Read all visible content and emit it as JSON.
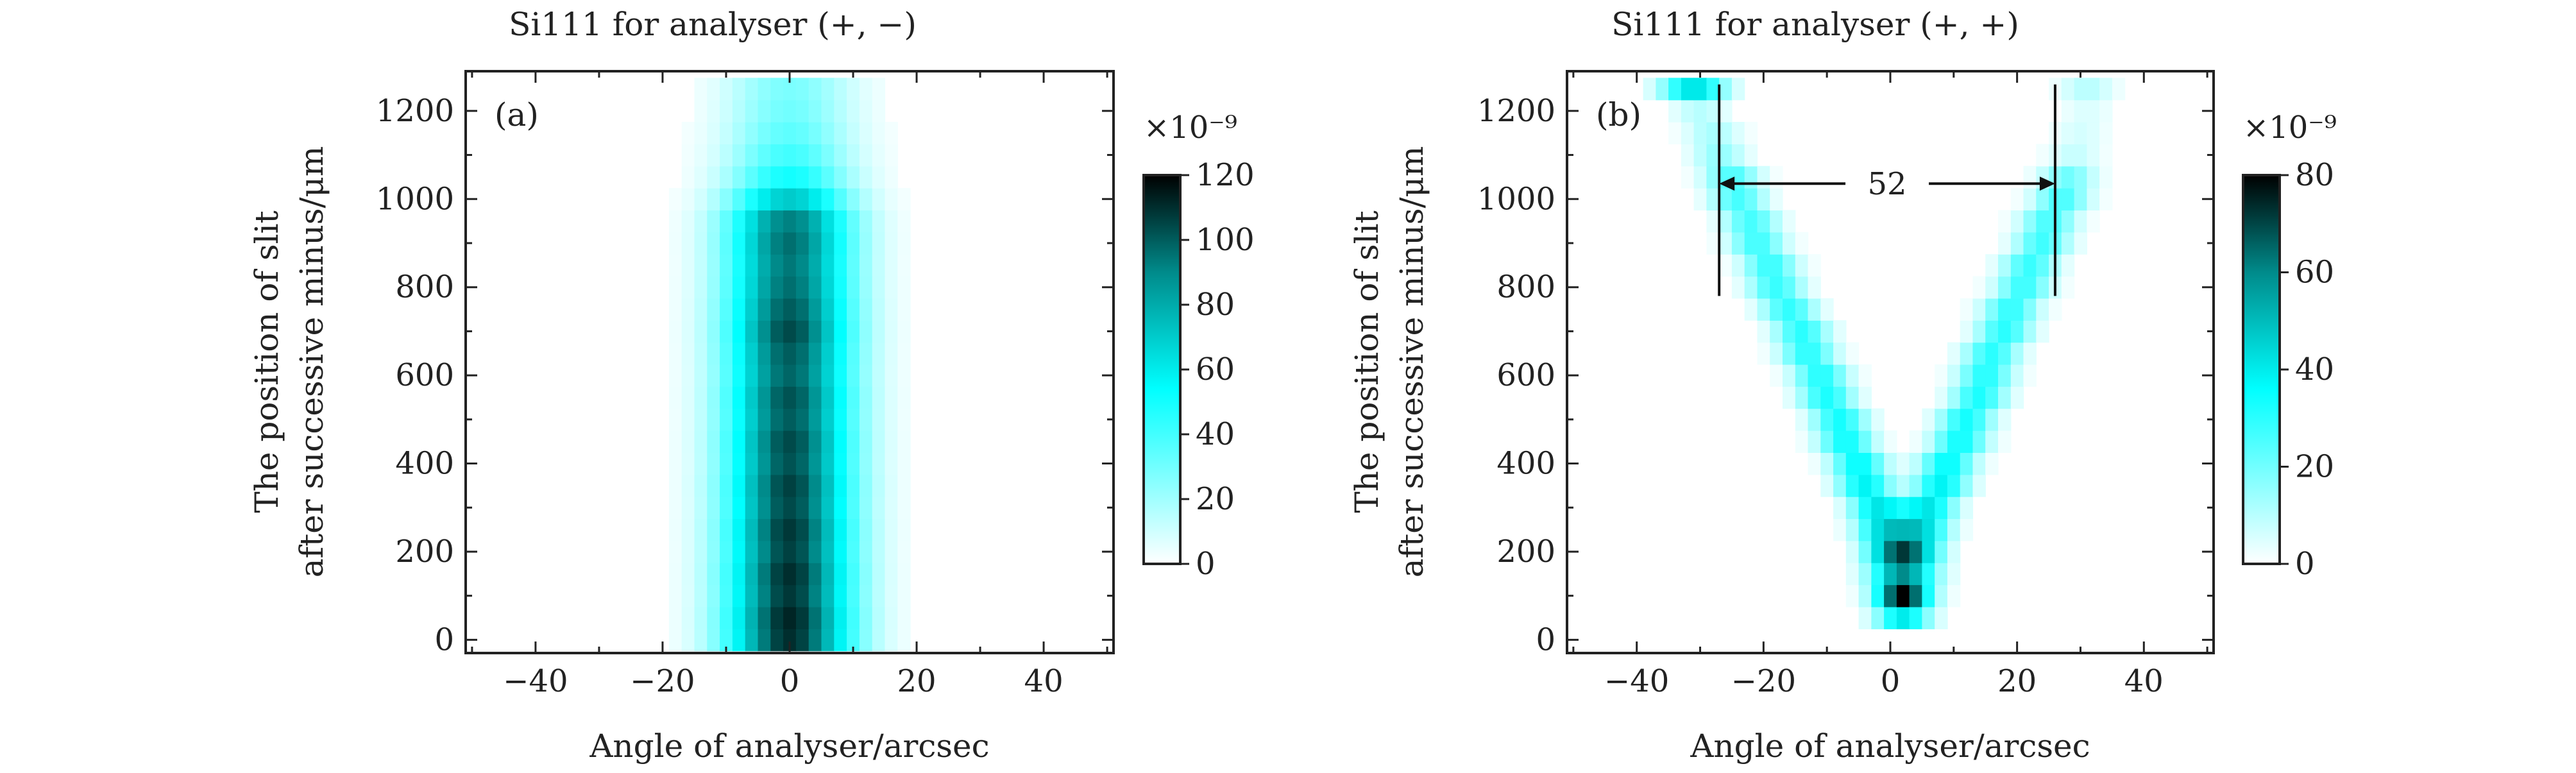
{
  "chart_data": [
    {
      "type": "heatmap",
      "panel_label": "(a)",
      "title": "Si111 for analyser (+, −)",
      "xlabel": "Angle of analyser/arcsec",
      "ylabel_line1": "The position of slit",
      "ylabel_line2": "after successive minus/μm",
      "xlim": [
        -51,
        51
      ],
      "ylim": [
        -30,
        1290
      ],
      "x_ticks": [
        -40,
        -20,
        0,
        20,
        40
      ],
      "x_tick_labels": [
        "−40",
        "−20",
        "0",
        "20",
        "40"
      ],
      "y_ticks": [
        0,
        200,
        400,
        600,
        800,
        1000,
        1200
      ],
      "y_tick_labels": [
        "0",
        "200",
        "400",
        "600",
        "800",
        "1000",
        "1200"
      ],
      "colorbar": {
        "range": [
          0,
          120
        ],
        "exponent_label": "×10⁻⁹",
        "ticks": [
          0,
          20,
          40,
          60,
          80,
          100,
          120
        ],
        "tick_labels": [
          "0",
          "20",
          "40",
          "60",
          "80",
          "100",
          "120"
        ],
        "colors": [
          "#ffffff",
          "#00ffff",
          "#008b8b",
          "#000000"
        ]
      },
      "rows": [
        {
          "y": 0,
          "center": 0,
          "width": 7,
          "peak": 110
        },
        {
          "y": 50,
          "center": 0,
          "width": 7,
          "peak": 112
        },
        {
          "y": 100,
          "center": 0,
          "width": 7,
          "peak": 108
        },
        {
          "y": 150,
          "center": 0,
          "width": 7,
          "peak": 110
        },
        {
          "y": 200,
          "center": 0,
          "width": 7,
          "peak": 106
        },
        {
          "y": 250,
          "center": 0,
          "width": 7,
          "peak": 108
        },
        {
          "y": 300,
          "center": 0,
          "width": 7,
          "peak": 104
        },
        {
          "y": 350,
          "center": 0,
          "width": 7,
          "peak": 106
        },
        {
          "y": 400,
          "center": 0,
          "width": 7,
          "peak": 102
        },
        {
          "y": 450,
          "center": 0,
          "width": 7,
          "peak": 104
        },
        {
          "y": 500,
          "center": 0,
          "width": 7,
          "peak": 100
        },
        {
          "y": 550,
          "center": 0,
          "width": 7,
          "peak": 102
        },
        {
          "y": 600,
          "center": 0,
          "width": 7,
          "peak": 98
        },
        {
          "y": 650,
          "center": 0,
          "width": 7,
          "peak": 100
        },
        {
          "y": 700,
          "center": 0,
          "width": 7,
          "peak": 104
        },
        {
          "y": 750,
          "center": 0,
          "width": 7,
          "peak": 100
        },
        {
          "y": 800,
          "center": 0,
          "width": 7,
          "peak": 96
        },
        {
          "y": 850,
          "center": 0,
          "width": 7,
          "peak": 94
        },
        {
          "y": 900,
          "center": 0,
          "width": 7,
          "peak": 96
        },
        {
          "y": 950,
          "center": 0,
          "width": 7,
          "peak": 92
        },
        {
          "y": 1000,
          "center": 0,
          "width": 7,
          "peak": 70
        },
        {
          "y": 1050,
          "center": 0,
          "width": 7,
          "peak": 50
        },
        {
          "y": 1100,
          "center": 0,
          "width": 7,
          "peak": 40
        },
        {
          "y": 1150,
          "center": 0,
          "width": 7,
          "peak": 34
        },
        {
          "y": 1200,
          "center": 0,
          "width": 7,
          "peak": 30
        },
        {
          "y": 1250,
          "center": 0,
          "width": 7,
          "peak": 28
        }
      ]
    },
    {
      "type": "heatmap",
      "panel_label": "(b)",
      "title": "Si111 for analyser (+, +)",
      "xlabel": "Angle of analyser/arcsec",
      "ylabel_line1": "The position of slit",
      "ylabel_line2": "after successive minus/μm",
      "xlim": [
        -51,
        51
      ],
      "ylim": [
        -30,
        1290
      ],
      "x_ticks": [
        -40,
        -20,
        0,
        20,
        40
      ],
      "x_tick_labels": [
        "−40",
        "−20",
        "0",
        "20",
        "40"
      ],
      "y_ticks": [
        0,
        200,
        400,
        600,
        800,
        1000,
        1200
      ],
      "y_tick_labels": [
        "0",
        "200",
        "400",
        "600",
        "800",
        "1000",
        "1200"
      ],
      "colorbar": {
        "range": [
          0,
          80
        ],
        "exponent_label": "×10⁻⁹",
        "ticks": [
          0,
          20,
          40,
          60,
          80
        ],
        "tick_labels": [
          "0",
          "20",
          "40",
          "60",
          "80"
        ],
        "colors": [
          "#ffffff",
          "#00ffff",
          "#008b8b",
          "#000000"
        ]
      },
      "annotation": {
        "label": "52",
        "x_start": -27,
        "x_end": 26,
        "arrow_y": 1035,
        "line_y_bottom": 780,
        "line_y_top": 1260
      },
      "rows": [
        {
          "y": 50,
          "peaks": [
            {
              "center": 2,
              "width": 3,
              "peak": 40
            }
          ]
        },
        {
          "y": 100,
          "peaks": [
            {
              "center": 2,
              "width": 3,
              "peak": 80
            }
          ]
        },
        {
          "y": 150,
          "peaks": [
            {
              "center": 2,
              "width": 3.5,
              "peak": 60
            }
          ]
        },
        {
          "y": 200,
          "peaks": [
            {
              "center": 0,
              "width": 3,
              "peak": 45
            },
            {
              "center": 4,
              "width": 3,
              "peak": 45
            }
          ]
        },
        {
          "y": 250,
          "peaks": [
            {
              "center": -1,
              "width": 3,
              "peak": 42
            },
            {
              "center": 5,
              "width": 3,
              "peak": 42
            }
          ]
        },
        {
          "y": 300,
          "peaks": [
            {
              "center": -2,
              "width": 3,
              "peak": 40
            },
            {
              "center": 6,
              "width": 3,
              "peak": 40
            }
          ]
        },
        {
          "y": 350,
          "peaks": [
            {
              "center": -4,
              "width": 3,
              "peak": 38
            },
            {
              "center": 8,
              "width": 3,
              "peak": 38
            }
          ]
        },
        {
          "y": 400,
          "peaks": [
            {
              "center": -5,
              "width": 3,
              "peak": 36
            },
            {
              "center": 9,
              "width": 3,
              "peak": 36
            }
          ]
        },
        {
          "y": 450,
          "peaks": [
            {
              "center": -7,
              "width": 3,
              "peak": 34
            },
            {
              "center": 11,
              "width": 3,
              "peak": 34
            }
          ]
        },
        {
          "y": 500,
          "peaks": [
            {
              "center": -8,
              "width": 3,
              "peak": 33
            },
            {
              "center": 12,
              "width": 3,
              "peak": 33
            }
          ]
        },
        {
          "y": 550,
          "peaks": [
            {
              "center": -10,
              "width": 3,
              "peak": 32
            },
            {
              "center": 14,
              "width": 3,
              "peak": 32
            }
          ]
        },
        {
          "y": 600,
          "peaks": [
            {
              "center": -11,
              "width": 3,
              "peak": 31
            },
            {
              "center": 15,
              "width": 3,
              "peak": 31
            }
          ]
        },
        {
          "y": 650,
          "peaks": [
            {
              "center": -13,
              "width": 3,
              "peak": 30
            },
            {
              "center": 16,
              "width": 3,
              "peak": 30
            }
          ]
        },
        {
          "y": 700,
          "peaks": [
            {
              "center": -14,
              "width": 3,
              "peak": 30
            },
            {
              "center": 18,
              "width": 3,
              "peak": 30
            }
          ]
        },
        {
          "y": 750,
          "peaks": [
            {
              "center": -16,
              "width": 3,
              "peak": 29
            },
            {
              "center": 19,
              "width": 3,
              "peak": 29
            }
          ]
        },
        {
          "y": 800,
          "peaks": [
            {
              "center": -18,
              "width": 3,
              "peak": 28
            },
            {
              "center": 21,
              "width": 3,
              "peak": 28
            }
          ]
        },
        {
          "y": 850,
          "peaks": [
            {
              "center": -19,
              "width": 3,
              "peak": 28
            },
            {
              "center": 22,
              "width": 3,
              "peak": 28
            }
          ]
        },
        {
          "y": 900,
          "peaks": [
            {
              "center": -21,
              "width": 3,
              "peak": 27
            },
            {
              "center": 24,
              "width": 3,
              "peak": 27
            }
          ]
        },
        {
          "y": 950,
          "peaks": [
            {
              "center": -22,
              "width": 3,
              "peak": 26
            },
            {
              "center": 25,
              "width": 3,
              "peak": 26
            }
          ]
        },
        {
          "y": 1000,
          "peaks": [
            {
              "center": -24,
              "width": 3,
              "peak": 26
            },
            {
              "center": 27,
              "width": 3,
              "peak": 26
            }
          ]
        },
        {
          "y": 1050,
          "peaks": [
            {
              "center": -25,
              "width": 3,
              "peak": 25
            },
            {
              "center": 28,
              "width": 3,
              "peak": 20
            }
          ]
        },
        {
          "y": 1100,
          "peaks": [
            {
              "center": -27,
              "width": 3,
              "peak": 15
            },
            {
              "center": 29,
              "width": 3,
              "peak": 8
            }
          ]
        },
        {
          "y": 1150,
          "peaks": [
            {
              "center": -28,
              "width": 3,
              "peak": 12
            },
            {
              "center": 30,
              "width": 3,
              "peak": 6
            }
          ]
        },
        {
          "y": 1200,
          "peaks": [
            {
              "center": -30,
              "width": 3,
              "peak": 10
            },
            {
              "center": 31,
              "width": 3,
              "peak": 5
            }
          ]
        },
        {
          "y": 1250,
          "peaks": [
            {
              "center": -31,
              "width": 3.5,
              "peak": 42
            },
            {
              "center": 31,
              "width": 3,
              "peak": 10
            }
          ]
        }
      ]
    }
  ]
}
